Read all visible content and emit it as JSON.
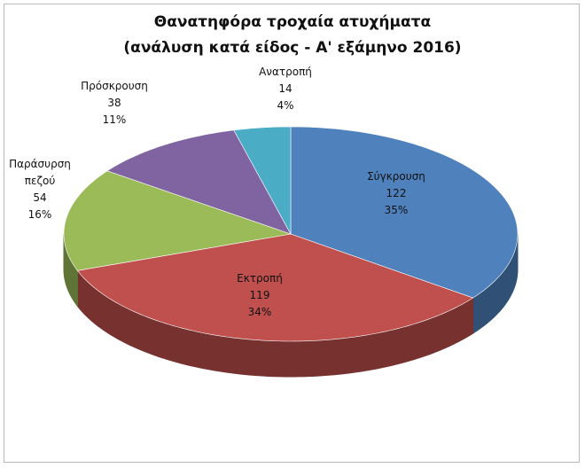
{
  "chart_data": {
    "type": "pie3d",
    "title": "Θανατηφόρα τροχαία ατυχήματα",
    "subtitle": "(ανάλυση κατά είδος - Α' εξάμηνο 2016)",
    "categories": [
      "Σύγκρουση",
      "Εκτροπή",
      "Παράσυρση πεζού",
      "Πρόσκρουση",
      "Ανατροπή"
    ],
    "values": [
      122,
      119,
      54,
      38,
      14
    ],
    "percent_labels": [
      "35%",
      "34%",
      "16%",
      "11%",
      "4%"
    ],
    "colors": [
      "#4f81bd",
      "#c0504d",
      "#9bbb59",
      "#8064a2",
      "#4bacc6"
    ]
  }
}
